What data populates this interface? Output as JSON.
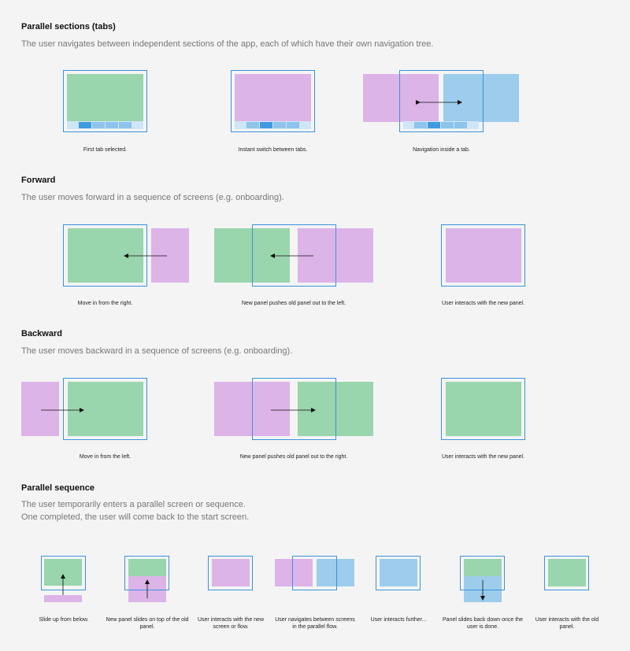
{
  "sections": [
    {
      "title": "Parallel sections (tabs)",
      "description": [
        "The user navigates between independent sections of the app, each of which have their own navigation tree."
      ],
      "captions": [
        "First tab selected.",
        "Instant switch between tabs.",
        "Navigation inside a tab."
      ]
    },
    {
      "title": "Forward",
      "description": [
        "The user moves forward in a sequence of screens (e.g. onboarding)."
      ],
      "captions": [
        "Move in from the right.",
        "New panel pushes old panel out to the left.",
        "User interacts with the new panel."
      ]
    },
    {
      "title": "Backward",
      "description": [
        "The user moves backward in a sequence of screens (e.g. onboarding)."
      ],
      "captions": [
        "Move in from the left.",
        "New panel pushes old panel out to the right.",
        "User interacts with the new panel."
      ]
    },
    {
      "title": "Parallel sequence",
      "description": [
        "The user temporarily enters a parallel screen or sequence.",
        "One completed, the user will come back to the start screen."
      ],
      "captions": [
        "Slide up from below.",
        "New panel slides on top of the old panel.",
        "User interacts with the new screen or flow.",
        "User navigates between screens in the parallel flow.",
        "User interacts further...",
        "Panel slides back down once the user is done.",
        "User interacts with the old panel."
      ]
    }
  ],
  "colors": {
    "green": "#99d5ad",
    "purple": "#dcb4e8",
    "blue": "#9dccec",
    "frame": "#3a93dc",
    "tab_selected": "#3f9be0"
  }
}
